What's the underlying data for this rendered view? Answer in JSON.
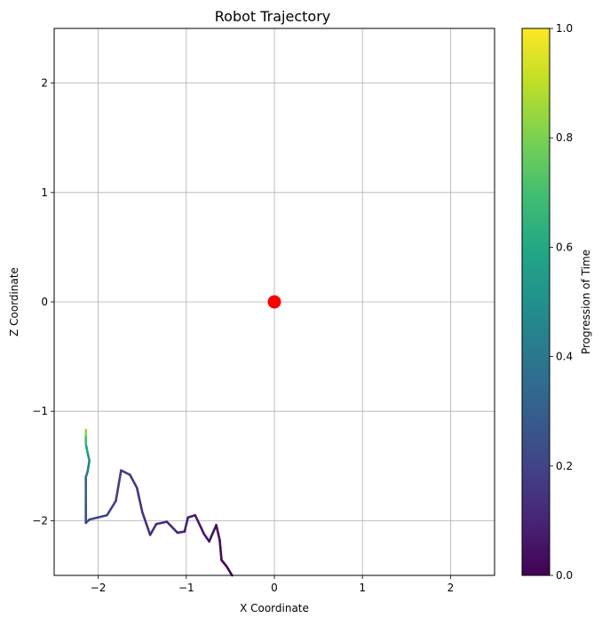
{
  "chart_data": {
    "type": "line",
    "title": "Robot Trajectory",
    "xlabel": "X Coordinate",
    "ylabel": "Z Coordinate",
    "xlim": [
      -2.5,
      2.5
    ],
    "ylim": [
      -2.5,
      2.5
    ],
    "grid": true,
    "x_ticks": [
      -2,
      -1,
      0,
      1,
      2
    ],
    "y_ticks": [
      -2,
      -1,
      0,
      1,
      2
    ],
    "x_tick_labels": [
      "−2",
      "−1",
      "0",
      "1",
      "2"
    ],
    "y_tick_labels": [
      "−2",
      "−1",
      "0",
      "1",
      "2"
    ],
    "target_point": {
      "x": 0,
      "y": 0,
      "color": "#ff0000"
    },
    "colorbar": {
      "label": "Progression of Time",
      "colormap": "viridis",
      "range": [
        0,
        1
      ],
      "ticks": [
        0.0,
        0.2,
        0.4,
        0.6,
        0.8,
        1.0
      ],
      "tick_labels": [
        "0.0",
        "0.2",
        "0.4",
        "0.6",
        "0.8",
        "1.0"
      ]
    },
    "trajectory": [
      {
        "x": -0.48,
        "y": -2.5,
        "t": 0.0
      },
      {
        "x": -0.54,
        "y": -2.42,
        "t": 0.01
      },
      {
        "x": -0.6,
        "y": -2.36,
        "t": 0.02
      },
      {
        "x": -0.62,
        "y": -2.18,
        "t": 0.03
      },
      {
        "x": -0.66,
        "y": -2.04,
        "t": 0.04
      },
      {
        "x": -0.74,
        "y": -2.19,
        "t": 0.05
      },
      {
        "x": -0.8,
        "y": -2.12,
        "t": 0.06
      },
      {
        "x": -0.84,
        "y": -2.05,
        "t": 0.07
      },
      {
        "x": -0.9,
        "y": -1.95,
        "t": 0.08
      },
      {
        "x": -0.98,
        "y": -1.97,
        "t": 0.09
      },
      {
        "x": -1.02,
        "y": -2.1,
        "t": 0.1
      },
      {
        "x": -1.1,
        "y": -2.11,
        "t": 0.11
      },
      {
        "x": -1.22,
        "y": -2.01,
        "t": 0.12
      },
      {
        "x": -1.34,
        "y": -2.03,
        "t": 0.13
      },
      {
        "x": -1.41,
        "y": -2.13,
        "t": 0.14
      },
      {
        "x": -1.5,
        "y": -1.92,
        "t": 0.15
      },
      {
        "x": -1.56,
        "y": -1.7,
        "t": 0.16
      },
      {
        "x": -1.64,
        "y": -1.58,
        "t": 0.17
      },
      {
        "x": -1.74,
        "y": -1.54,
        "t": 0.18
      },
      {
        "x": -1.8,
        "y": -1.82,
        "t": 0.19
      },
      {
        "x": -1.9,
        "y": -1.95,
        "t": 0.2
      },
      {
        "x": -2.1,
        "y": -1.99,
        "t": 0.21
      },
      {
        "x": -2.14,
        "y": -2.02,
        "t": 0.22
      },
      {
        "x": -2.14,
        "y": -1.85,
        "t": 0.25
      },
      {
        "x": -2.14,
        "y": -1.6,
        "t": 0.35
      },
      {
        "x": -2.12,
        "y": -1.55,
        "t": 0.4
      },
      {
        "x": -2.1,
        "y": -1.45,
        "t": 0.48
      },
      {
        "x": -2.12,
        "y": -1.38,
        "t": 0.55
      },
      {
        "x": -2.14,
        "y": -1.3,
        "t": 0.62
      },
      {
        "x": -2.14,
        "y": -1.22,
        "t": 0.75
      },
      {
        "x": -2.14,
        "y": -1.17,
        "t": 0.92
      }
    ]
  }
}
